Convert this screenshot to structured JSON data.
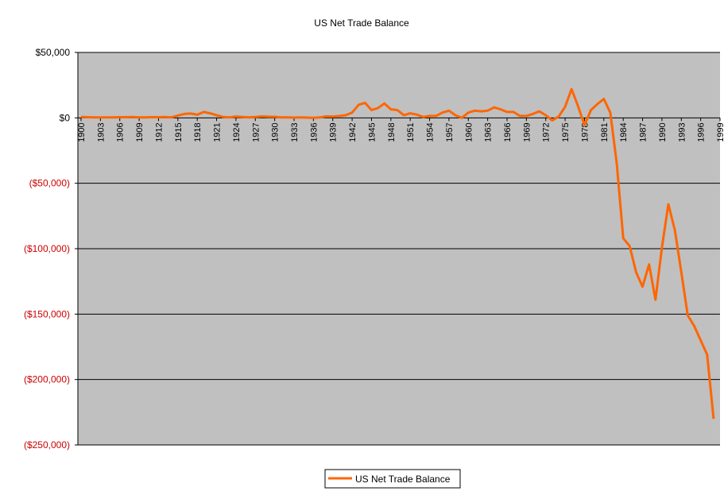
{
  "chart_data": {
    "type": "line",
    "title": "US Net Trade Balance",
    "xlabel": "",
    "ylabel": "",
    "ylim": [
      -250000,
      50000
    ],
    "y_ticks": [
      50000,
      0,
      -50000,
      -100000,
      -150000,
      -200000,
      -250000
    ],
    "y_tick_labels": [
      "$50,000",
      "$0",
      "($50,000)",
      "($100,000)",
      "($150,000)",
      "($200,000)",
      "($250,000)"
    ],
    "x_tick_labels": [
      "1900",
      "1903",
      "1906",
      "1909",
      "1912",
      "1915",
      "1918",
      "1921",
      "1924",
      "1927",
      "1930",
      "1933",
      "1936",
      "1939",
      "1942",
      "1945",
      "1948",
      "1951",
      "1954",
      "1957",
      "1960",
      "1963",
      "1966",
      "1969",
      "1972",
      "1975",
      "1978",
      "1981",
      "1984",
      "1987",
      "1990",
      "1993",
      "1996",
      "1999"
    ],
    "legend": {
      "position": "bottom",
      "entries": [
        "US Net Trade Balance"
      ]
    },
    "colors": {
      "plot_background": "#c0c0c0",
      "series": "#ff6600",
      "negative_tick": "#cc0000",
      "positive_tick": "#000000",
      "gridline": "#000000"
    },
    "series": [
      {
        "name": "US Net Trade Balance",
        "x": [
          1900,
          1901,
          1902,
          1903,
          1904,
          1905,
          1906,
          1907,
          1908,
          1909,
          1910,
          1911,
          1912,
          1913,
          1914,
          1915,
          1916,
          1917,
          1918,
          1919,
          1920,
          1921,
          1922,
          1923,
          1924,
          1925,
          1926,
          1927,
          1928,
          1929,
          1930,
          1931,
          1932,
          1933,
          1934,
          1935,
          1936,
          1937,
          1938,
          1939,
          1940,
          1941,
          1942,
          1943,
          1944,
          1945,
          1946,
          1947,
          1948,
          1949,
          1950,
          1951,
          1952,
          1953,
          1954,
          1955,
          1956,
          1957,
          1958,
          1959,
          1960,
          1961,
          1962,
          1963,
          1964,
          1965,
          1966,
          1967,
          1968,
          1969,
          1970,
          1971,
          1972,
          1973,
          1974,
          1975,
          1976,
          1977,
          1978,
          1979,
          1980,
          1981,
          1982,
          1983,
          1984,
          1985,
          1986,
          1987,
          1988,
          1989,
          1990,
          1991,
          1992,
          1993,
          1994,
          1995,
          1996,
          1997,
          1998
        ],
        "values": [
          600,
          500,
          400,
          400,
          400,
          400,
          500,
          500,
          600,
          400,
          300,
          500,
          500,
          700,
          400,
          1800,
          3000,
          3300,
          2400,
          4500,
          3500,
          2000,
          700,
          400,
          1000,
          700,
          400,
          700,
          1100,
          900,
          800,
          300,
          300,
          200,
          400,
          200,
          100,
          300,
          1100,
          1000,
          1400,
          2000,
          4000,
          10000,
          11500,
          6000,
          7500,
          11000,
          6500,
          6000,
          2000,
          3500,
          2500,
          600,
          1500,
          1500,
          4000,
          5500,
          2000,
          0,
          4000,
          5500,
          5000,
          5500,
          8000,
          6500,
          4500,
          4500,
          1500,
          1500,
          3000,
          5000,
          2000,
          -2000,
          1000,
          8500,
          22000,
          9000,
          -5500,
          6000,
          10500,
          14500,
          4000,
          -35000,
          -92000,
          -98000,
          -118000,
          -129000,
          -112000,
          -139000,
          -99000,
          -66000,
          -86000,
          -118000,
          -151000,
          -159000,
          -170000,
          -181000,
          -230000
        ]
      }
    ]
  }
}
